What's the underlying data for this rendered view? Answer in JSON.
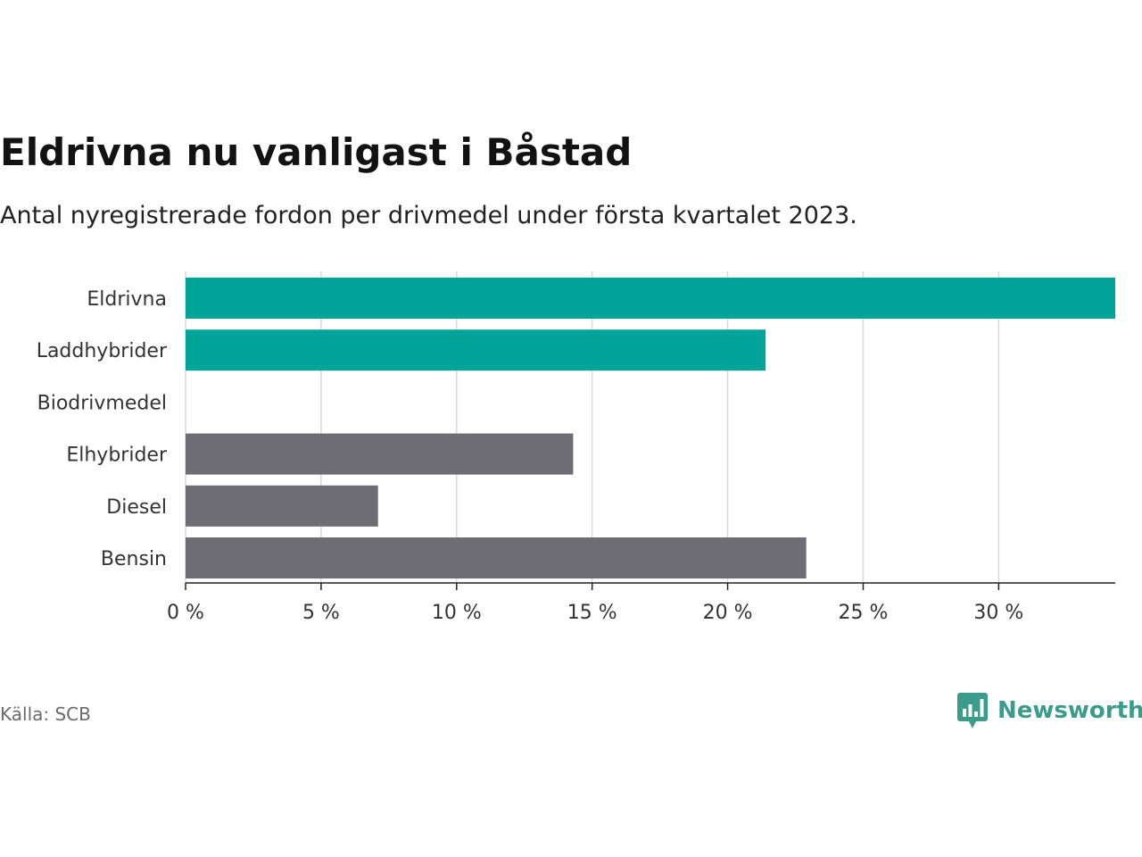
{
  "header": {
    "title": "Eldrivna nu vanligast i Båstad",
    "subtitle": "Antal nyregistrerade fordon per drivmedel under första kvartalet 2023."
  },
  "footer": {
    "source": "Källa: SCB",
    "brand": "Newsworthy",
    "brand_icon": "bar-chart-bubble-icon"
  },
  "colors": {
    "highlight": "#00a499",
    "default": "#6e6d73",
    "brand": "#3b9c8c",
    "grid": "#d9d9d9"
  },
  "chart_data": {
    "type": "bar",
    "orientation": "horizontal",
    "title": "Eldrivna nu vanligast i Båstad",
    "subtitle": "Antal nyregistrerade fordon per drivmedel under första kvartalet 2023.",
    "xlabel": "",
    "ylabel": "",
    "categories": [
      "Eldrivna",
      "Laddhybrider",
      "Biodrivmedel",
      "Elhybrider",
      "Diesel",
      "Bensin"
    ],
    "values": [
      34.3,
      21.4,
      0,
      14.3,
      7.1,
      22.9
    ],
    "highlight": [
      true,
      true,
      false,
      false,
      false,
      false
    ],
    "unit": "%",
    "xlim": [
      0,
      34.3
    ],
    "xticks": [
      0,
      5,
      10,
      15,
      20,
      25,
      30
    ],
    "xtick_labels": [
      "0 %",
      "5 %",
      "10 %",
      "15 %",
      "20 %",
      "25 %",
      "30 %"
    ],
    "grid": "vertical",
    "legend": "none"
  }
}
